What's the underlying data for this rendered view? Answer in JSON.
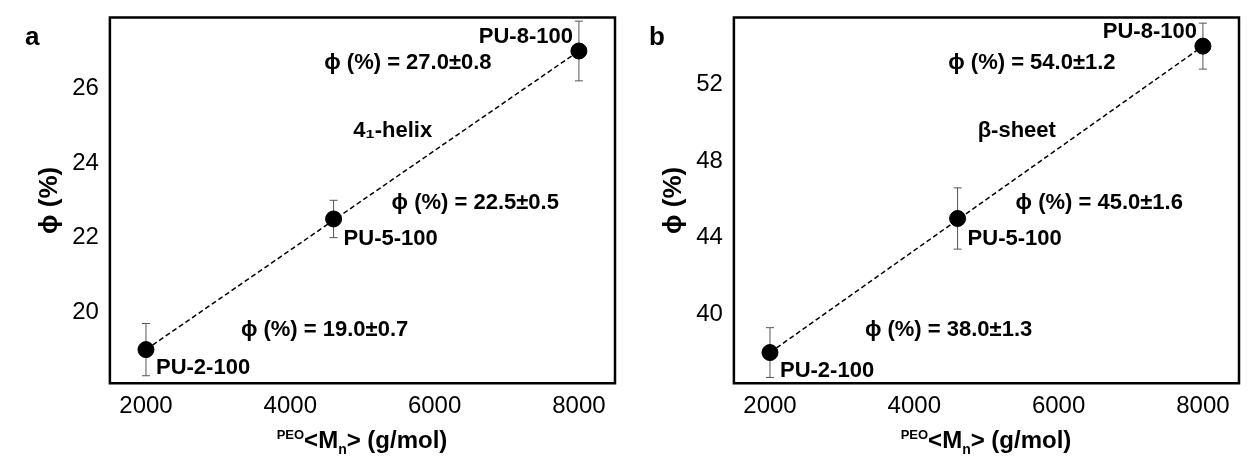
{
  "chart_data": [
    {
      "type": "scatter",
      "title": "a",
      "xlabel": "$^{PEO}$<M$_{n}$> (g/mol)",
      "ylabel": "ϕ (%)",
      "xlim": [
        1500,
        8500
      ],
      "xticks": [
        2000,
        4000,
        6000,
        8000
      ],
      "ylim": [
        18.1,
        27.9
      ],
      "yticks": [
        20,
        22,
        24,
        26
      ],
      "grid": false,
      "legend": false,
      "series": [
        {
          "type": "scatter",
          "x": [
            2000,
            4600,
            8000
          ],
          "values": [
            19.0,
            22.5,
            27.0
          ],
          "errors": [
            0.7,
            0.5,
            0.8
          ],
          "color": "#000000",
          "marker": "circle"
        },
        {
          "type": "line",
          "x": [
            2000,
            8000
          ],
          "values": [
            19.0,
            27.0
          ],
          "color": "#000000",
          "marker": "none",
          "line_style": "dashed"
        }
      ],
      "annotations": [
        {
          "text": "PU-8-100",
          "x": 8000,
          "y": 27.0
        },
        "ϕ (%) = 27.0±0.8",
        "4₁-helix",
        {
          "text": "ϕ (%) = 22.5±0.5",
          "x": 4600,
          "y": 22.5
        },
        {
          "text": "PU-5-100",
          "x": 4600,
          "y": 22.5
        },
        "ϕ (%) = 19.0±0.7",
        {
          "text": "PU-2-100",
          "x": 2000,
          "y": 19.0
        }
      ]
    },
    {
      "type": "scatter",
      "title": "b",
      "xlabel": "$^{PEO}$<M$_{n}$> (g/mol)",
      "ylabel": "ϕ (%)",
      "xlim": [
        1500,
        8500
      ],
      "xticks": [
        2000,
        4000,
        6000,
        8000
      ],
      "ylim": [
        36.4,
        55.5
      ],
      "yticks": [
        40,
        44,
        48,
        52
      ],
      "grid": false,
      "legend": false,
      "series": [
        {
          "type": "scatter",
          "x": [
            2000,
            4600,
            8000
          ],
          "values": [
            38.0,
            45.0,
            54.0
          ],
          "errors": [
            1.3,
            1.6,
            1.2
          ],
          "color": "#000000",
          "marker": "circle"
        },
        {
          "type": "line",
          "x": [
            2000,
            8000
          ],
          "values": [
            38.0,
            54.0
          ],
          "color": "#000000",
          "marker": "none",
          "line_style": "dashed"
        }
      ],
      "annotations": [
        {
          "text": "PU-8-100",
          "x": 8000,
          "y": 54.0
        },
        "ϕ (%) = 54.0±1.2",
        "β-sheet",
        {
          "text": "ϕ (%) = 45.0±1.6",
          "x": 4600,
          "y": 45.0
        },
        {
          "text": "PU-5-100",
          "x": 4600,
          "y": 45.0
        },
        "ϕ (%) = 38.0±1.3",
        {
          "text": "PU-2-100",
          "x": 2000,
          "y": 38.0
        }
      ]
    }
  ]
}
